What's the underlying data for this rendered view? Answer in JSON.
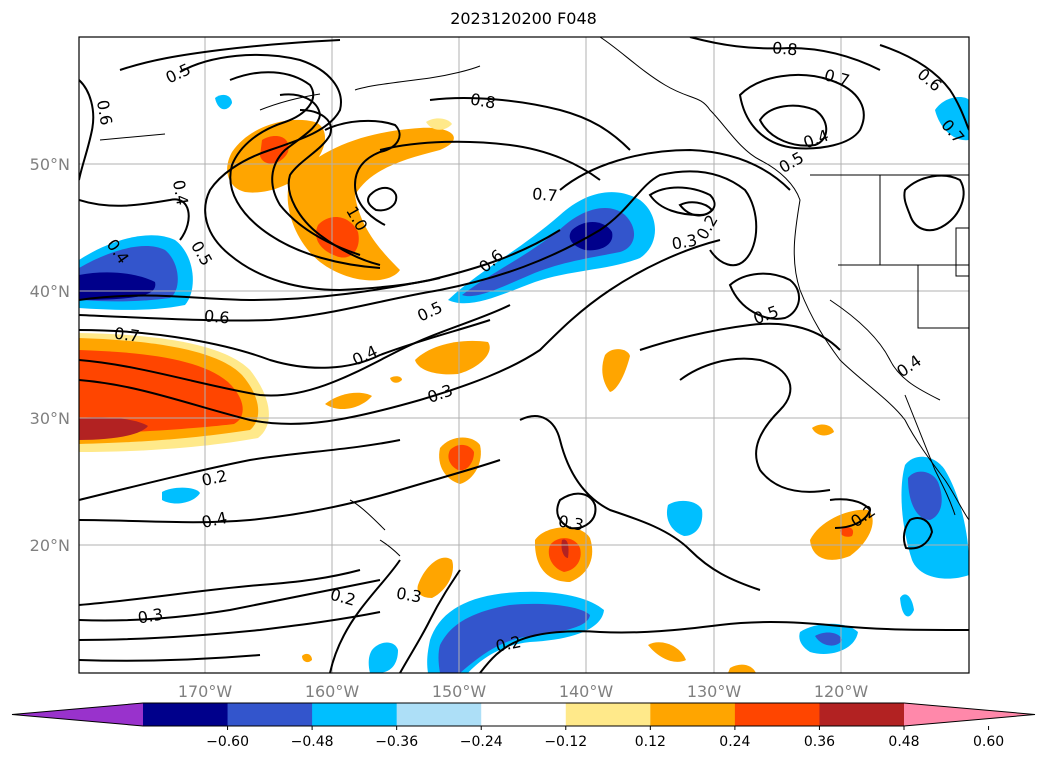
{
  "title": "2023120200 F048",
  "lon_labels": [
    "170°W",
    "160°W",
    "150°W",
    "140°W",
    "130°W",
    "120°W"
  ],
  "lat_labels": [
    "50°N",
    "40°N",
    "30°N",
    "20°N"
  ],
  "colorbar": {
    "ticks": [
      "−0.60",
      "−0.48",
      "−0.36",
      "−0.24",
      "−0.12",
      "0.12",
      "0.24",
      "0.36",
      "0.48",
      "0.60"
    ],
    "colors": [
      "#9932CC",
      "#00008B",
      "#3355CC",
      "#00BFFF",
      "#ADDFF7",
      "#FFFFFF",
      "#FFE98A",
      "#FFA500",
      "#FF4500",
      "#B22222",
      "#FF88AA"
    ]
  },
  "contour_labels": [
    "0.5",
    "0.6",
    "0.4",
    "0.4",
    "0.5",
    "0.6",
    "0.7",
    "1.0",
    "0.8",
    "0.8",
    "0.7",
    "0.6",
    "0.7",
    "0.4",
    "0.5",
    "0.7",
    "0.6",
    "0.3",
    "0.2",
    "0.5",
    "0.5",
    "0.4",
    "0.3",
    "0.4",
    "0.2",
    "0.4",
    "0.3",
    "0.3",
    "0.2",
    "0.3",
    "0.2",
    "0.2"
  ]
}
